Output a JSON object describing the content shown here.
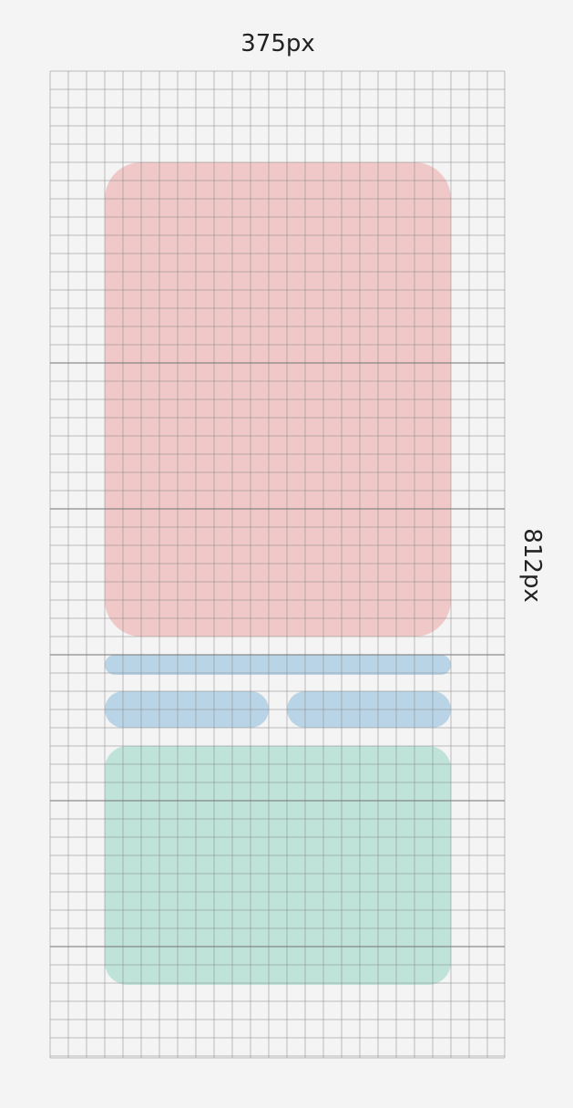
{
  "width_label": "375px",
  "height_label": "812px"
}
